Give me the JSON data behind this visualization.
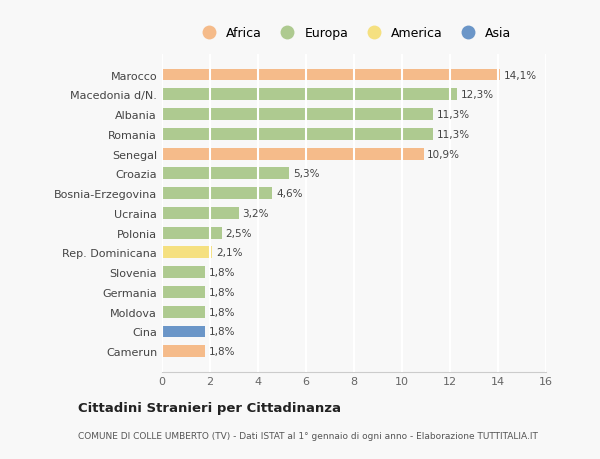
{
  "countries": [
    "Camerun",
    "Cina",
    "Moldova",
    "Germania",
    "Slovenia",
    "Rep. Dominicana",
    "Polonia",
    "Ucraina",
    "Bosnia-Erzegovina",
    "Croazia",
    "Senegal",
    "Romania",
    "Albania",
    "Macedonia d/N.",
    "Marocco"
  ],
  "values": [
    1.8,
    1.8,
    1.8,
    1.8,
    1.8,
    2.1,
    2.5,
    3.2,
    4.6,
    5.3,
    10.9,
    11.3,
    11.3,
    12.3,
    14.1
  ],
  "labels": [
    "1,8%",
    "1,8%",
    "1,8%",
    "1,8%",
    "1,8%",
    "2,1%",
    "2,5%",
    "3,2%",
    "4,6%",
    "5,3%",
    "10,9%",
    "11,3%",
    "11,3%",
    "12,3%",
    "14,1%"
  ],
  "continents": [
    "Africa",
    "Asia",
    "Europa",
    "Europa",
    "Europa",
    "America",
    "Europa",
    "Europa",
    "Europa",
    "Europa",
    "Africa",
    "Europa",
    "Europa",
    "Europa",
    "Africa"
  ],
  "colors": {
    "Africa": "#F5BB8A",
    "Europa": "#AECA90",
    "America": "#F5E080",
    "Asia": "#6B96C8"
  },
  "title": "Cittadini Stranieri per Cittadinanza",
  "subtitle": "COMUNE DI COLLE UMBERTO (TV) - Dati ISTAT al 1° gennaio di ogni anno - Elaborazione TUTTITALIA.IT",
  "xlim": [
    0,
    16
  ],
  "xticks": [
    0,
    2,
    4,
    6,
    8,
    10,
    12,
    14,
    16
  ],
  "background_color": "#f8f8f8",
  "legend_items": [
    "Africa",
    "Europa",
    "America",
    "Asia"
  ],
  "legend_colors": [
    "#F5BB8A",
    "#AECA90",
    "#F5E080",
    "#6B96C8"
  ]
}
